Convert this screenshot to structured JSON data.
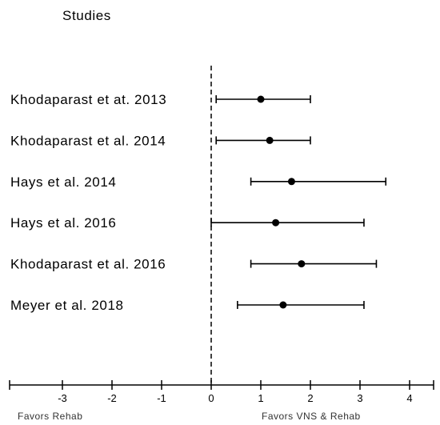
{
  "chart_data": {
    "type": "forest",
    "heading": "Studies",
    "studies": [
      {
        "name": "Khodaparast et at. 2013",
        "estimate": 1.0,
        "ci": [
          0.1,
          2.0
        ]
      },
      {
        "name": "Khodaparast et al. 2014",
        "estimate": 1.18,
        "ci": [
          0.1,
          2.0
        ]
      },
      {
        "name": "Hays et al. 2014",
        "estimate": 1.62,
        "ci": [
          0.8,
          3.52
        ]
      },
      {
        "name": "Hays et al. 2016",
        "estimate": 1.3,
        "ci": [
          0.0,
          3.08
        ]
      },
      {
        "name": "Khodaparast et al. 2016",
        "estimate": 1.82,
        "ci": [
          0.8,
          3.33
        ]
      },
      {
        "name": "Meyer et al. 2018",
        "estimate": 1.45,
        "ci": [
          0.53,
          3.08
        ]
      }
    ],
    "x_ticks": [
      "-3",
      "-2",
      "-1",
      "0",
      "1",
      "2",
      "3",
      "4"
    ],
    "xlim": [
      -4,
      4.5
    ],
    "reference_line": 0,
    "left_label": "Favors Rehab",
    "right_label": "Favors VNS & Rehab"
  }
}
